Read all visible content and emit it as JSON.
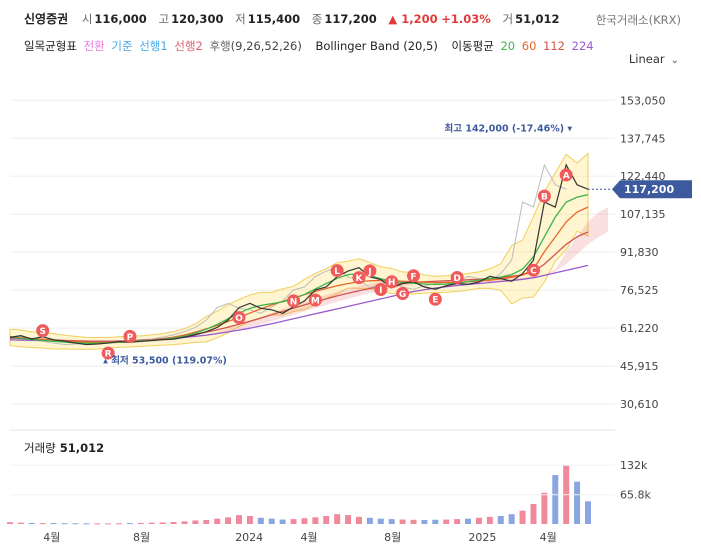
{
  "header": {
    "name": "신영증권",
    "open_label": "시",
    "open": "116,000",
    "high_label": "고",
    "high": "120,300",
    "low_label": "저",
    "low": "115,400",
    "close_label": "종",
    "close": "117,200",
    "change": "▲ 1,200",
    "change_pct": "+1.03%",
    "volume_label": "거",
    "volume": "51,012",
    "exchange": "한국거래소(KRX)"
  },
  "indicators": {
    "ichimoku_label": "일목균형표",
    "tenkan": "전환",
    "kijun": "기준",
    "span1": "선행1",
    "span2": "선행2",
    "chikou": "후행",
    "ichimoku_params": "(9,26,52,26)",
    "bollinger": "Bollinger Band (20,5)",
    "ma_label": "이동평균",
    "ma": [
      "20",
      "60",
      "112",
      "224"
    ],
    "colors": {
      "tenkan": "#e57ae0",
      "kijun": "#4aa8e8",
      "span1": "#4aa8e8",
      "span2": "#e06070",
      "ma20": "#3bb54a",
      "ma60": "#e66a2c",
      "ma112": "#d2554f",
      "ma224": "#9b59d0"
    }
  },
  "scale": {
    "mode": "Linear"
  },
  "chart_data": {
    "type": "line",
    "y_axis_ticks": [
      "153,050",
      "137,745",
      "122,440",
      "107,135",
      "91,830",
      "76,525",
      "61,220",
      "45,915",
      "30,610"
    ],
    "ylim": [
      25000,
      158000
    ],
    "x_ticks": [
      "4월",
      "8월",
      "2024",
      "4월",
      "8월",
      "2025",
      "4월"
    ],
    "current_price_label": "117,200",
    "high_marker": "최고 142,000 (-17.46%)",
    "low_marker": "최저 53,500 (119.07%)",
    "series_close": {
      "values": [
        57500,
        58200,
        56800,
        57800,
        56500,
        56000,
        55200,
        54600,
        54800,
        55200,
        55800,
        55500,
        55900,
        56200,
        56600,
        56800,
        57600,
        58500,
        59800,
        61500,
        64500,
        69500,
        71200,
        69200,
        68600,
        67200,
        69800,
        72200,
        76600,
        77800,
        82000,
        84200,
        85600,
        81900,
        80800,
        77500,
        79200,
        79900,
        77800,
        76900,
        78300,
        79200,
        78900,
        79800,
        82100,
        81200,
        80100,
        83200,
        88600,
        112000,
        110000,
        127000,
        119000,
        117200
      ],
      "color": "#333333"
    },
    "series_ma224": {
      "values": [
        56500,
        56400,
        56300,
        56200,
        56100,
        56000,
        55900,
        55900,
        55900,
        55900,
        56000,
        56100,
        56300,
        56500,
        56800,
        57100,
        57500,
        57900,
        58400,
        59000,
        59700,
        60400,
        61200,
        62100,
        63000,
        64000,
        65000,
        66000,
        67000,
        68000,
        69000,
        70000,
        71000,
        72000,
        73000,
        74000,
        75000,
        76000,
        76700,
        77400,
        77900,
        78400,
        78800,
        79200,
        79600,
        80000,
        80400,
        80900,
        81500,
        82500,
        83500,
        84500,
        85500,
        86500
      ],
      "color": "#9b59d0"
    },
    "series_ma112": {
      "values": [
        57200,
        57000,
        56900,
        56700,
        56500,
        56300,
        56100,
        56000,
        55900,
        55900,
        56000,
        56100,
        56300,
        56600,
        57000,
        57500,
        58100,
        58800,
        59600,
        60500,
        61600,
        62800,
        64000,
        65300,
        66600,
        68000,
        69300,
        70600,
        71800,
        73000,
        74200,
        75300,
        76300,
        77200,
        78000,
        78700,
        79200,
        79600,
        79900,
        80100,
        80300,
        80500,
        80700,
        80900,
        81200,
        81600,
        82100,
        82700,
        84000,
        87000,
        91000,
        95000,
        98000,
        100000
      ],
      "color": "#d2554f"
    },
    "series_ma60": {
      "values": [
        57800,
        57300,
        57000,
        56700,
        56300,
        56000,
        55700,
        55500,
        55400,
        55400,
        55500,
        55700,
        56000,
        56400,
        56900,
        57600,
        58500,
        59600,
        60900,
        62300,
        63900,
        65600,
        67300,
        69000,
        70600,
        72000,
        73400,
        74700,
        76000,
        77200,
        78300,
        79200,
        79900,
        80300,
        80400,
        80300,
        80100,
        79900,
        79700,
        79600,
        79600,
        79700,
        79900,
        80200,
        80600,
        81100,
        81700,
        82600,
        85000,
        92000,
        98000,
        104000,
        108000,
        110000
      ],
      "color": "#e66a2c"
    },
    "series_ma20": {
      "values": [
        57500,
        57100,
        56600,
        56300,
        55900,
        55600,
        55300,
        55100,
        55100,
        55300,
        55600,
        55800,
        56000,
        56300,
        56700,
        57200,
        58000,
        59200,
        60800,
        62700,
        65000,
        67300,
        69200,
        70400,
        71100,
        71800,
        73000,
        74800,
        77000,
        79200,
        81300,
        82800,
        83200,
        82400,
        81100,
        80200,
        79600,
        79300,
        79000,
        78800,
        79000,
        79400,
        79900,
        80600,
        81200,
        81800,
        82800,
        85000,
        90000,
        98000,
        106000,
        112000,
        114000,
        115000
      ],
      "color": "#3bb54a"
    },
    "markers": [
      "S",
      "R",
      "P",
      "O",
      "N",
      "M",
      "L",
      "K",
      "J",
      "I",
      "H",
      "G",
      "F",
      "E",
      "D",
      "C",
      "B",
      "A"
    ],
    "volume": {
      "title": "거래량",
      "last": "51,012",
      "ticks": [
        "132k",
        "65.8k"
      ],
      "ylim": [
        0,
        155000
      ],
      "values": [
        4000,
        3000,
        2500,
        2000,
        2200,
        1800,
        1600,
        1500,
        1400,
        1500,
        1700,
        2000,
        2500,
        3000,
        3500,
        4500,
        6000,
        8000,
        9000,
        12000,
        15000,
        20000,
        18000,
        14000,
        12000,
        10000,
        11000,
        13000,
        15000,
        18000,
        22000,
        20000,
        16000,
        14000,
        12000,
        11000,
        10000,
        9500,
        9000,
        9500,
        10000,
        11000,
        12000,
        14000,
        16000,
        18000,
        22000,
        30000,
        45000,
        70000,
        110000,
        132000,
        95000,
        51012
      ]
    }
  }
}
